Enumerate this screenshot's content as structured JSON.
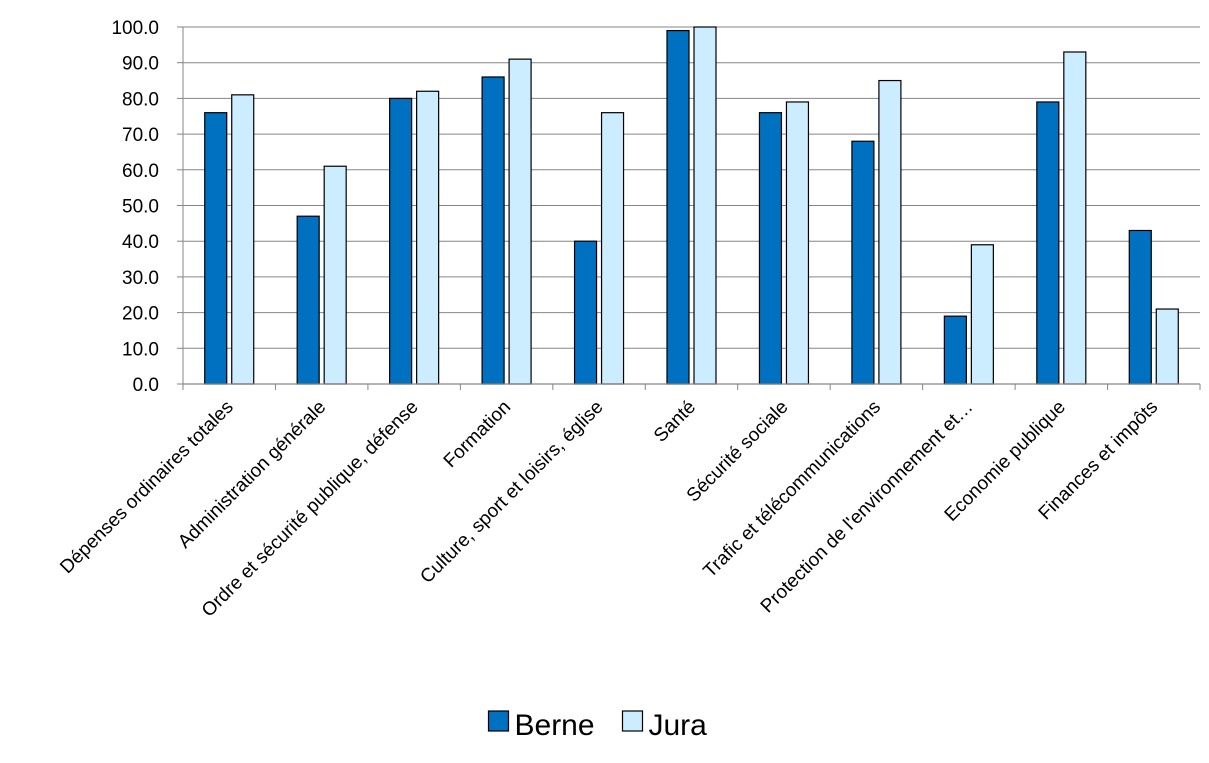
{
  "chart_data": {
    "type": "bar",
    "title": "",
    "xlabel": "",
    "ylabel": "",
    "ylim": [
      0,
      100
    ],
    "ytick_step": 10,
    "ytick_labels": [
      "0.0",
      "10.0",
      "20.0",
      "30.0",
      "40.0",
      "50.0",
      "60.0",
      "70.0",
      "80.0",
      "90.0",
      "100.0"
    ],
    "grid": true,
    "legend_position": "bottom",
    "categories": [
      "Dépenses ordinaires totales",
      "Administration générale",
      "Ordre et sécurité publique, défense",
      "Formation",
      "Culture, sport et loisirs, église",
      "Santé",
      "Sécurité sociale",
      "Trafic et télécommunications",
      "Protection de l'environnement et…",
      "Economie publique",
      "Finances et impôts"
    ],
    "series": [
      {
        "name": "Berne",
        "color": "#0070C0",
        "values": [
          76.0,
          47.0,
          80.0,
          86.0,
          40.0,
          99.0,
          76.0,
          68.0,
          19.0,
          79.0,
          43.0
        ]
      },
      {
        "name": "Jura",
        "color": "#CCECFF",
        "values": [
          81.0,
          61.0,
          82.0,
          91.0,
          76.0,
          100.0,
          79.0,
          85.0,
          39.0,
          93.0,
          21.0
        ]
      }
    ]
  }
}
